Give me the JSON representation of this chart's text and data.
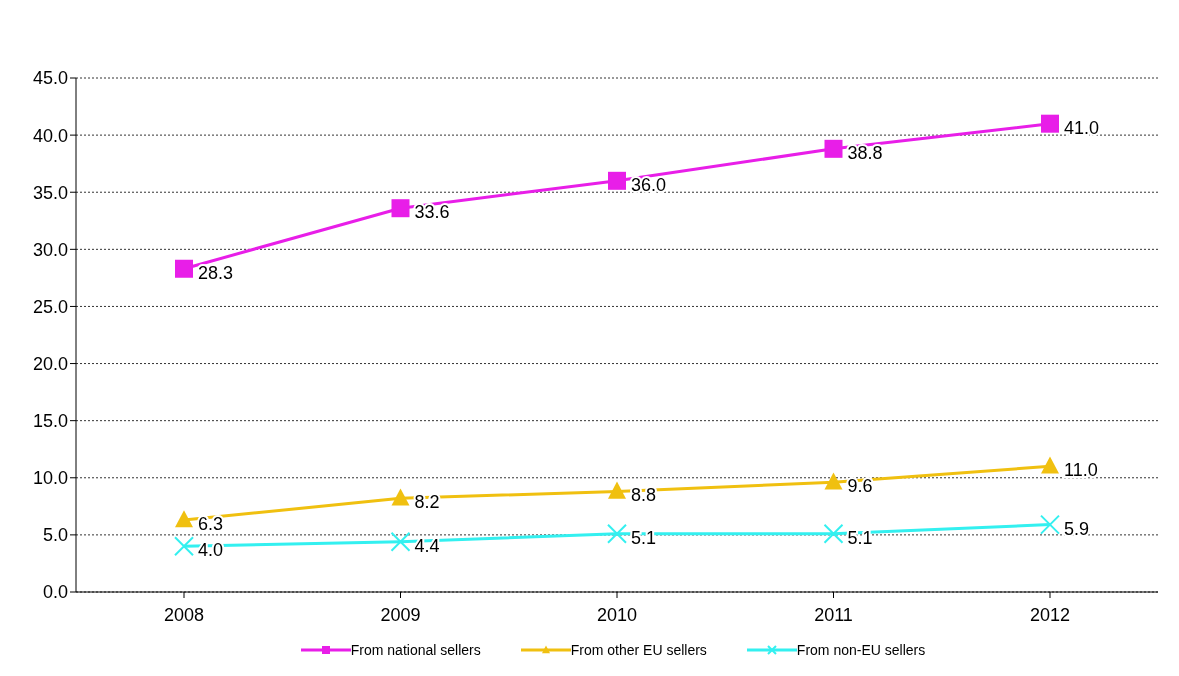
{
  "chart_data": {
    "type": "line",
    "categories": [
      "2008",
      "2009",
      "2010",
      "2011",
      "2012"
    ],
    "series": [
      {
        "name": "From national sellers",
        "color": "#e81ee8",
        "marker": "square",
        "values": [
          28.3,
          33.6,
          36.0,
          38.8,
          41.0
        ],
        "value_labels": [
          "28.3",
          "33.6",
          "36.0",
          "38.8",
          "41.0"
        ]
      },
      {
        "name": "From other EU sellers",
        "color": "#f0c010",
        "marker": "triangle",
        "values": [
          6.3,
          8.2,
          8.8,
          9.6,
          11.0
        ],
        "value_labels": [
          "6.3",
          "8.2",
          "8.8",
          "9.6",
          "11.0"
        ]
      },
      {
        "name": "From non-EU sellers",
        "color": "#33f0f0",
        "marker": "cross",
        "values": [
          4.0,
          4.4,
          5.1,
          5.1,
          5.9
        ],
        "value_labels": [
          "4.0",
          "4.4",
          "5.1",
          "5.1",
          "5.9"
        ]
      }
    ],
    "ylim": [
      0,
      45
    ],
    "yticks": [
      {
        "value": 0,
        "label": "0.0"
      },
      {
        "value": 5,
        "label": "5.0"
      },
      {
        "value": 10,
        "label": "10.0"
      },
      {
        "value": 15,
        "label": "15.0"
      },
      {
        "value": 20,
        "label": "20.0"
      },
      {
        "value": 25,
        "label": "25.0"
      },
      {
        "value": 30,
        "label": "30.0"
      },
      {
        "value": 35,
        "label": "35.0"
      },
      {
        "value": 40,
        "label": "40.0"
      },
      {
        "value": 45,
        "label": "45.0"
      }
    ],
    "grid": "y",
    "legend": "bottom",
    "line_style": "solid"
  }
}
